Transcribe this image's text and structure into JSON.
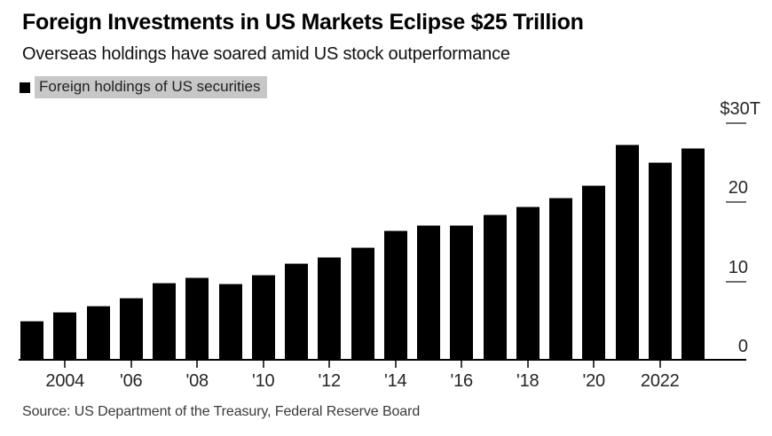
{
  "header": {
    "title": "Foreign Investments in US Markets Eclipse $25 Trillion",
    "subtitle": "Overseas holdings have soared amid US stock outperformance"
  },
  "legend": {
    "label": "Foreign holdings of US securities",
    "swatch_color": "#000000",
    "highlight_color": "#c7c7c7"
  },
  "source": "Source: US Department of the Treasury, Federal Reserve Board",
  "chart_data": {
    "type": "bar",
    "title": "Foreign Investments in US Markets Eclipse $25 Trillion",
    "subtitle": "Overseas holdings have soared amid US stock outperformance",
    "series_name": "Foreign holdings of US securities",
    "unit": "trillion USD ($T)",
    "categories": [
      2003,
      2004,
      2005,
      2006,
      2007,
      2008,
      2009,
      2010,
      2011,
      2012,
      2013,
      2014,
      2015,
      2016,
      2017,
      2018,
      2019,
      2020,
      2021,
      2022,
      2023
    ],
    "values": [
      4.9,
      6.0,
      6.8,
      7.8,
      9.7,
      10.4,
      9.6,
      10.7,
      12.2,
      13.0,
      14.2,
      16.3,
      17.0,
      17.0,
      18.3,
      19.3,
      20.4,
      22.0,
      27.2,
      24.9,
      26.7
    ],
    "ylim": [
      0,
      30
    ],
    "y_ticks": [
      {
        "value": 30,
        "label": "$30T"
      },
      {
        "value": 20,
        "label": "20"
      },
      {
        "value": 10,
        "label": "10"
      },
      {
        "value": 0,
        "label": "0"
      }
    ],
    "x_ticks": [
      {
        "year": 2004,
        "label": "2004"
      },
      {
        "year": 2006,
        "label": "'06"
      },
      {
        "year": 2008,
        "label": "'08"
      },
      {
        "year": 2010,
        "label": "'10"
      },
      {
        "year": 2012,
        "label": "'12"
      },
      {
        "year": 2014,
        "label": "'14"
      },
      {
        "year": 2016,
        "label": "'16"
      },
      {
        "year": 2018,
        "label": "'18"
      },
      {
        "year": 2020,
        "label": "'20"
      },
      {
        "year": 2022,
        "label": "2022"
      }
    ],
    "bar_color": "#000000",
    "grid": "off",
    "legend_position": "top-left",
    "y_axis_side": "right"
  }
}
